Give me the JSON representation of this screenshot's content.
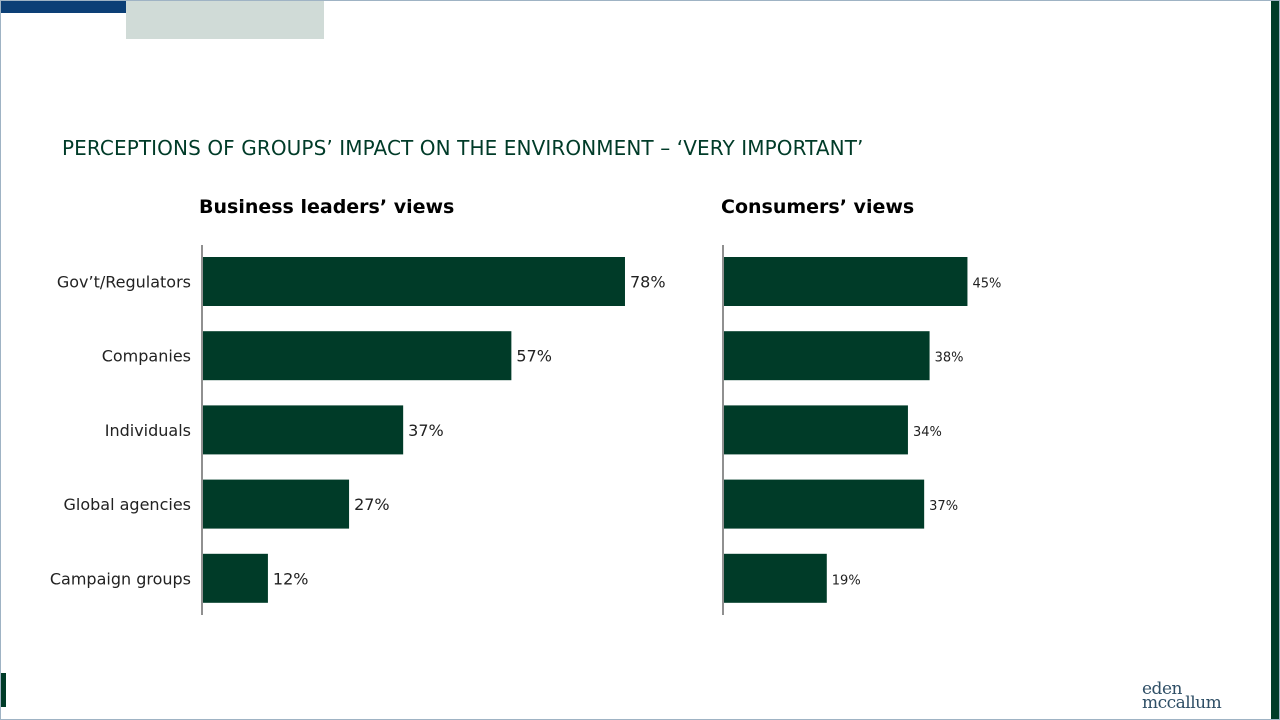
{
  "title": "PERCEPTIONS OF GROUPS’ IMPACT ON THE ENVIRONMENT – ‘VERY IMPORTANT’",
  "logo": {
    "line1": "eden",
    "line2": "mccallum"
  },
  "colors": {
    "bar": "#003b28",
    "accent_blue": "#0c3f76",
    "accent_grey": "#d0dbd7"
  },
  "chart_data": [
    {
      "type": "bar",
      "orientation": "horizontal",
      "title": "Business leaders’ views",
      "categories": [
        "Gov’t/Regulators",
        "Companies",
        "Individuals",
        "Global agencies",
        "Campaign groups"
      ],
      "values": [
        78,
        57,
        37,
        27,
        12
      ],
      "value_labels": [
        "78%",
        "57%",
        "37%",
        "27%",
        "12%"
      ],
      "unit": "%",
      "xlim": [
        0,
        100
      ]
    },
    {
      "type": "bar",
      "orientation": "horizontal",
      "title": "Consumers’ views",
      "categories": [
        "Gov’t/Regulators",
        "Companies",
        "Individuals",
        "Global agencies",
        "Campaign groups"
      ],
      "values": [
        45,
        38,
        34,
        37,
        19
      ],
      "value_labels": [
        "45%",
        "38%",
        "34%",
        "37%",
        "19%"
      ],
      "unit": "%",
      "xlim": [
        0,
        100
      ]
    }
  ]
}
